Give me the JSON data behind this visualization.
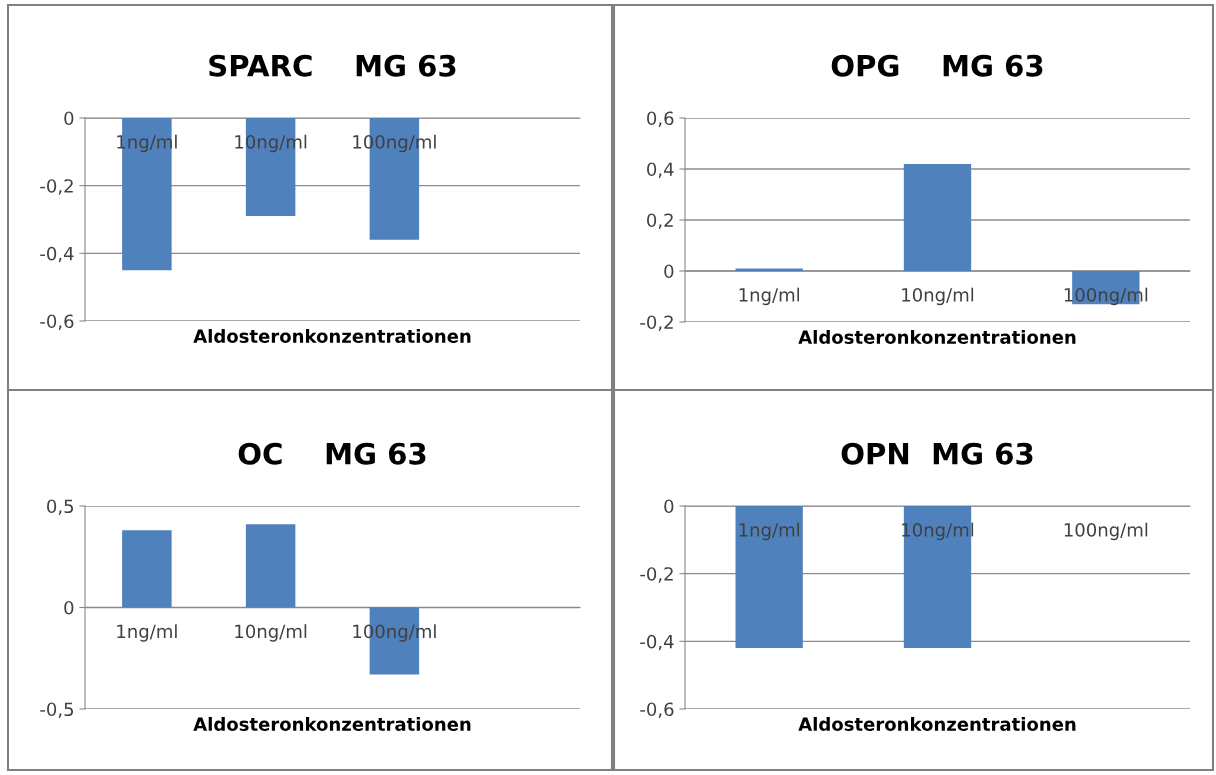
{
  "chart_data": [
    {
      "type": "bar",
      "title": "SPARC    MG 63",
      "xlabel": "Aldosteronkonzentrationen",
      "categories": [
        "1ng/ml",
        "10ng/ml",
        "100ng/ml",
        null
      ],
      "values": [
        -0.45,
        -0.29,
        -0.36,
        null
      ],
      "color": "#4f81bd",
      "ylim": [
        -0.6,
        0
      ],
      "yticks": [
        {
          "value": -0.6,
          "label": "-0,6"
        },
        {
          "value": -0.4,
          "label": "-0,4"
        },
        {
          "value": -0.2,
          "label": "-0,2"
        },
        0
      ],
      "grid": "y"
    },
    {
      "type": "bar",
      "title": "OPG    MG 63",
      "xlabel": "Aldosteronkonzentrationen",
      "categories": [
        "1ng/ml",
        "10ng/ml",
        "100ng/ml"
      ],
      "values": [
        0.01,
        0.42,
        -0.13
      ],
      "color": "#4f81bd",
      "ylim": [
        -0.2,
        0.6
      ],
      "yticks": [
        {
          "value": -0.2,
          "label": "-0,2"
        },
        0,
        {
          "value": 0.2,
          "label": "0,2"
        },
        {
          "value": 0.4,
          "label": "0,4"
        },
        {
          "value": 0.6,
          "label": "0,6"
        }
      ],
      "grid": "y"
    },
    {
      "type": "bar",
      "title": "OC    MG 63",
      "xlabel": "Aldosteronkonzentrationen",
      "categories": [
        "1ng/ml",
        "10ng/ml",
        "100ng/ml",
        null
      ],
      "values": [
        0.38,
        0.41,
        -0.33,
        null
      ],
      "color": "#4f81bd",
      "ylim": [
        -0.5,
        0.5
      ],
      "yticks": [
        {
          "value": -0.5,
          "label": "-0,5"
        },
        0,
        {
          "value": 0.5,
          "label": "0,5"
        }
      ],
      "grid": "y"
    },
    {
      "type": "bar",
      "title": "OPN  MG 63",
      "xlabel": "Aldosteronkonzentrationen",
      "categories": [
        "1ng/ml",
        "10ng/ml",
        "100ng/ml"
      ],
      "values": [
        -0.42,
        -0.42,
        null
      ],
      "color": "#4f81bd",
      "ylim": [
        -0.6,
        0
      ],
      "yticks": [
        {
          "value": -0.6,
          "label": "-0,6"
        },
        {
          "value": -0.4,
          "label": "-0,4"
        },
        {
          "value": -0.2,
          "label": "-0,2"
        },
        0
      ],
      "grid": "y"
    }
  ]
}
